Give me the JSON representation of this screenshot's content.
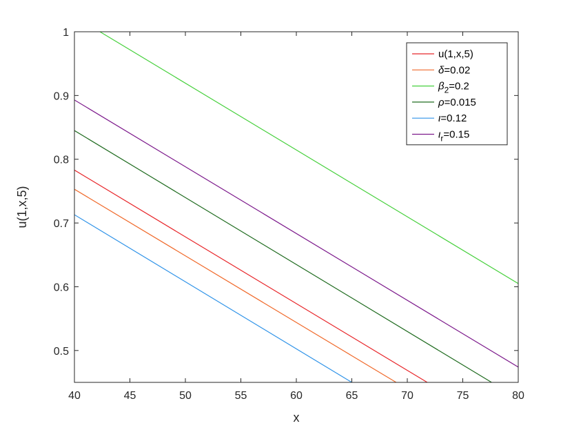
{
  "chart_data": {
    "type": "line",
    "title": "",
    "xlabel": "x",
    "ylabel": "u(1,x,5)",
    "xlim": [
      40,
      80
    ],
    "ylim": [
      0.45,
      1.0
    ],
    "xticks": [
      "40",
      "45",
      "50",
      "55",
      "60",
      "65",
      "70",
      "75",
      "80"
    ],
    "yticks": [
      "0.5",
      "0.6",
      "0.7",
      "0.8",
      "0.9",
      "1"
    ],
    "grid": false,
    "legend_position": "top-right",
    "series": [
      {
        "name": "u(1,x,5)",
        "legend": [
          {
            "t": "u(1,x,5)"
          }
        ],
        "color": "#e8262a",
        "x": [
          40,
          71.8
        ],
        "y": [
          0.783,
          0.45
        ]
      },
      {
        "name": "δ=0.02",
        "legend": [
          {
            "t": "δ",
            "i": true
          },
          {
            "t": "=0.02"
          }
        ],
        "color": "#f0692a",
        "x": [
          40,
          69.0
        ],
        "y": [
          0.753,
          0.45
        ]
      },
      {
        "name": "β2=0.2",
        "legend": [
          {
            "t": "β",
            "i": true
          },
          {
            "t": "2",
            "sub": true
          },
          {
            "t": "=0.2"
          }
        ],
        "color": "#46d03c",
        "x": [
          42.3,
          80
        ],
        "y": [
          1.0,
          0.605
        ]
      },
      {
        "name": "ρ=0.015",
        "legend": [
          {
            "t": "ρ",
            "i": true
          },
          {
            "t": "=0.015"
          }
        ],
        "color": "#1f6b1f",
        "x": [
          40,
          77.6
        ],
        "y": [
          0.845,
          0.45
        ]
      },
      {
        "name": "ι=0.12",
        "legend": [
          {
            "t": "ι",
            "i": true
          },
          {
            "t": "=0.12"
          }
        ],
        "color": "#2f93e8",
        "x": [
          40,
          65.0
        ],
        "y": [
          0.713,
          0.45
        ]
      },
      {
        "name": "ιr=0.15",
        "legend": [
          {
            "t": "ι",
            "i": true
          },
          {
            "t": "r",
            "sub": true
          },
          {
            "t": "=0.15"
          }
        ],
        "color": "#7d1a8c",
        "x": [
          40,
          80
        ],
        "y": [
          0.893,
          0.474
        ]
      }
    ]
  }
}
